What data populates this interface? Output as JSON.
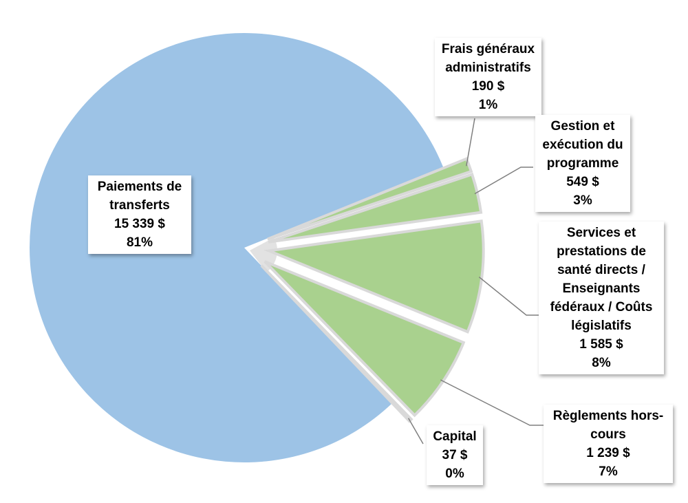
{
  "chart_data": {
    "type": "pie",
    "title": "",
    "slices": [
      {
        "label_lines": [
          "Paiements de",
          "transferts"
        ],
        "amount": "15 339 $",
        "percent": "81%",
        "value": 15339,
        "color": "#9DC3E6",
        "exploded": false
      },
      {
        "label_lines": [
          "Frais généraux",
          "administratifs"
        ],
        "amount": "190 $",
        "percent": "1%",
        "value": 190,
        "color": "#A9D18E",
        "exploded": true
      },
      {
        "label_lines": [
          "Gestion et",
          "exécution du",
          "programme"
        ],
        "amount": "549 $",
        "percent": "3%",
        "value": 549,
        "color": "#A9D18E",
        "exploded": true
      },
      {
        "label_lines": [
          "Services et",
          "prestations de",
          "santé directs /",
          "Enseignants",
          "fédéraux / Coûts",
          "législatifs"
        ],
        "amount": "1 585 $",
        "percent": "8%",
        "value": 1585,
        "color": "#A9D18E",
        "exploded": true
      },
      {
        "label_lines": [
          "Règlements hors-",
          "cours"
        ],
        "amount": "1 239 $",
        "percent": "7%",
        "value": 1239,
        "color": "#A9D18E",
        "exploded": true
      },
      {
        "label_lines": [
          "Capital"
        ],
        "amount": "37 $",
        "percent": "0%",
        "value": 37,
        "color": "#843C0C",
        "exploded": true
      }
    ]
  }
}
